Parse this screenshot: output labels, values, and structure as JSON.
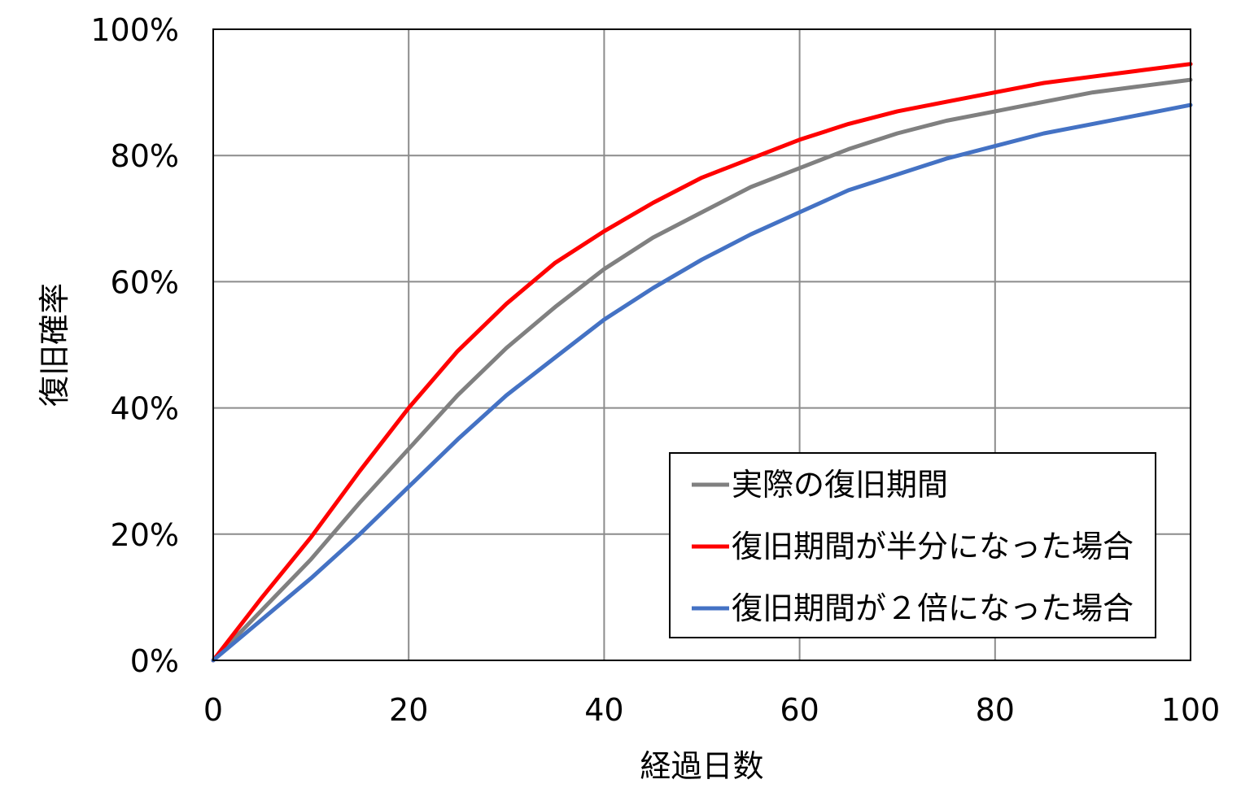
{
  "chart_data": {
    "type": "line",
    "title": "",
    "xlabel": "経過日数",
    "ylabel": "復旧確率",
    "xlim": [
      0,
      100
    ],
    "ylim": [
      0,
      1
    ],
    "x_ticks": [
      0,
      20,
      40,
      60,
      80,
      100
    ],
    "x_tick_labels": [
      "0",
      "20",
      "40",
      "60",
      "80",
      "100"
    ],
    "y_ticks": [
      0,
      0.2,
      0.4,
      0.6,
      0.8,
      1.0
    ],
    "y_tick_labels": [
      "0%",
      "20%",
      "40%",
      "60%",
      "80%",
      "100%"
    ],
    "grid": true,
    "legend_position": "bottom-right",
    "x": [
      0,
      5,
      10,
      15,
      20,
      25,
      30,
      35,
      40,
      45,
      50,
      55,
      60,
      65,
      70,
      75,
      80,
      85,
      90,
      95,
      100
    ],
    "series": [
      {
        "name": "実際の復旧期間",
        "color": "#808080",
        "values": [
          0,
          0.08,
          0.16,
          0.25,
          0.335,
          0.42,
          0.495,
          0.56,
          0.62,
          0.67,
          0.71,
          0.75,
          0.78,
          0.81,
          0.835,
          0.855,
          0.87,
          0.885,
          0.9,
          0.91,
          0.92
        ]
      },
      {
        "name": "復旧期間が半分になった場合",
        "color": "#ff0000",
        "values": [
          0,
          0.1,
          0.195,
          0.3,
          0.4,
          0.49,
          0.565,
          0.63,
          0.68,
          0.725,
          0.765,
          0.795,
          0.825,
          0.85,
          0.87,
          0.885,
          0.9,
          0.915,
          0.925,
          0.935,
          0.945
        ]
      },
      {
        "name": "復旧期間が２倍になった場合",
        "color": "#4472c4",
        "values": [
          0,
          0.065,
          0.13,
          0.2,
          0.275,
          0.35,
          0.42,
          0.48,
          0.54,
          0.59,
          0.635,
          0.675,
          0.71,
          0.745,
          0.77,
          0.795,
          0.815,
          0.835,
          0.85,
          0.865,
          0.88
        ]
      }
    ]
  }
}
